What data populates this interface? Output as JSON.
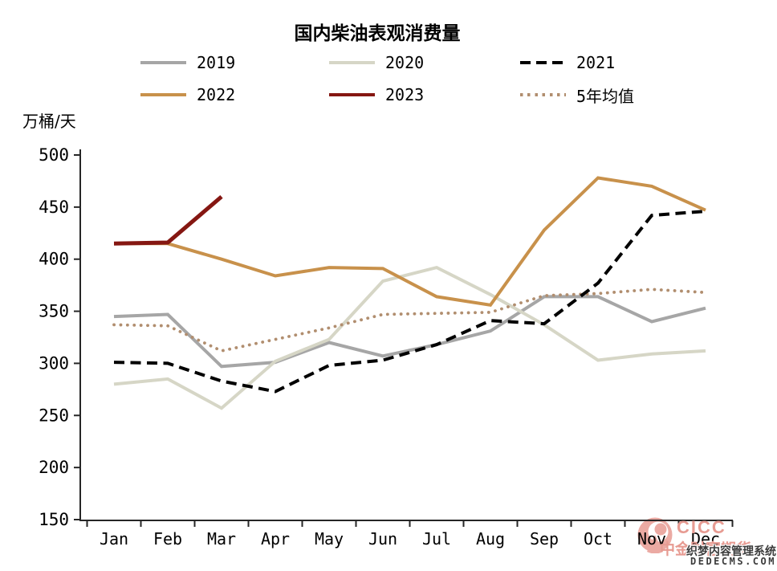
{
  "title": "国内柴油表观消费量",
  "unit_label": "万桶/天",
  "watermark": {
    "brand": "CICC",
    "brand_cn": "中金财富期货",
    "overlay_line1": "织梦内容管理系统",
    "overlay_line2": "DEDECMS.COM"
  },
  "chart_data": {
    "type": "line",
    "title": "国内柴油表观消费量",
    "ylabel": "万桶/天",
    "ylim": [
      150,
      500
    ],
    "yticks": [
      500,
      450,
      400,
      350,
      300,
      250,
      200,
      150
    ],
    "grid": false,
    "legend_position": "top",
    "categories": [
      "Jan",
      "Feb",
      "Mar",
      "Apr",
      "May",
      "Jun",
      "Jul",
      "Aug",
      "Sep",
      "Oct",
      "Nov",
      "Dec"
    ],
    "series": [
      {
        "name": "2019",
        "color": "#a6a6a6",
        "style": "solid",
        "values": [
          345,
          347,
          297,
          301,
          320,
          307,
          318,
          331,
          364,
          364,
          340,
          353
        ]
      },
      {
        "name": "2020",
        "color": "#d6d6c6",
        "style": "solid",
        "values": [
          280,
          285,
          257,
          302,
          323,
          379,
          392,
          366,
          337,
          303,
          309,
          312
        ]
      },
      {
        "name": "2021",
        "color": "#000000",
        "style": "dashed",
        "values": [
          301,
          300,
          283,
          273,
          298,
          303,
          318,
          341,
          338,
          377,
          442,
          446
        ]
      },
      {
        "name": "2022",
        "color": "#c8914b",
        "style": "solid",
        "values": [
          415,
          415,
          400,
          384,
          392,
          391,
          364,
          356,
          428,
          478,
          470,
          447
        ]
      },
      {
        "name": "2023",
        "color": "#851712",
        "style": "solid",
        "values": [
          415,
          416,
          460,
          null,
          null,
          null,
          null,
          null,
          null,
          null,
          null,
          null
        ]
      },
      {
        "name": "5年均值",
        "color": "#b18e6f",
        "style": "dotted",
        "values": [
          337,
          336,
          312,
          323,
          334,
          347,
          348,
          349,
          365,
          367,
          371,
          368
        ]
      }
    ]
  }
}
